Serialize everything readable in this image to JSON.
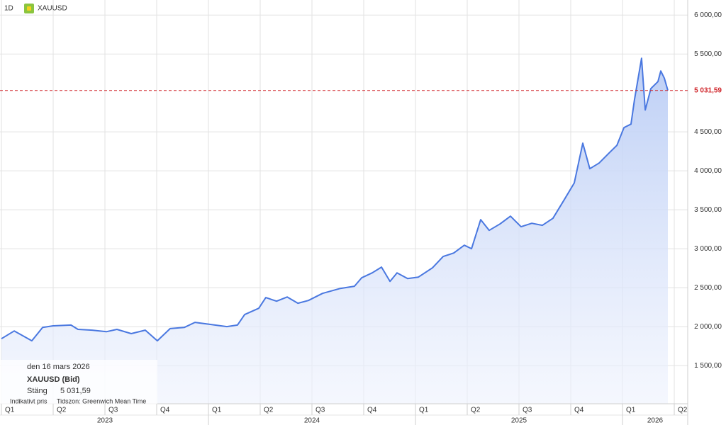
{
  "chart_data": {
    "type": "area",
    "interval": "1D",
    "symbol": "XAUUSD",
    "color": "#4a78e0",
    "x": [
      2023.0,
      2023.062,
      2023.147,
      2023.199,
      2023.25,
      2023.336,
      2023.37,
      2023.438,
      2023.507,
      2023.558,
      2023.627,
      2023.695,
      2023.753,
      2023.815,
      2023.884,
      2023.935,
      2024.003,
      2024.089,
      2024.14,
      2024.175,
      2024.243,
      2024.277,
      2024.329,
      2024.38,
      2024.432,
      2024.483,
      2024.551,
      2024.637,
      2024.705,
      2024.74,
      2024.791,
      2024.836,
      2024.877,
      2024.911,
      2024.962,
      2025.014,
      2025.082,
      2025.134,
      2025.185,
      2025.236,
      2025.271,
      2025.315,
      2025.356,
      2025.408,
      2025.459,
      2025.51,
      2025.562,
      2025.613,
      2025.664,
      2025.716,
      2025.767,
      2025.808,
      2025.842,
      2025.887,
      2025.938,
      2025.973,
      2026.007,
      2026.041,
      2026.058,
      2026.092,
      2026.11,
      2026.137,
      2026.171,
      2026.185,
      2026.202,
      2026.219
    ],
    "values": [
      1845,
      1945,
      1818,
      1990,
      2010,
      2020,
      1965,
      1955,
      1935,
      1965,
      1910,
      1955,
      1818,
      1975,
      1990,
      2055,
      2030,
      2000,
      2020,
      2155,
      2236,
      2373,
      2327,
      2380,
      2300,
      2336,
      2427,
      2490,
      2518,
      2627,
      2690,
      2764,
      2580,
      2690,
      2618,
      2636,
      2755,
      2900,
      2945,
      3045,
      3000,
      3373,
      3236,
      3318,
      3418,
      3282,
      3327,
      3300,
      3390,
      3618,
      3845,
      4355,
      4027,
      4100,
      4236,
      4327,
      4555,
      4600,
      4918,
      5445,
      4782,
      5055,
      5145,
      5282,
      5190,
      5031.59
    ],
    "xlim": [
      2023.0,
      2026.315
    ],
    "ylim": [
      1010,
      6120
    ],
    "yticks": [
      {
        "value": 1500,
        "label": "1 500,00"
      },
      {
        "value": 2000,
        "label": "2 000,00"
      },
      {
        "value": 2500,
        "label": "2 500,00"
      },
      {
        "value": 3000,
        "label": "3 000,00"
      },
      {
        "value": 3500,
        "label": "3 500,00"
      },
      {
        "value": 4000,
        "label": "4 000,00"
      },
      {
        "value": 4500,
        "label": "4 500,00"
      },
      {
        "value": 5500,
        "label": "5 500,00"
      },
      {
        "value": 6000,
        "label": "6 000,00"
      }
    ],
    "xticks": [
      {
        "value": 2023.0,
        "label": "Q1"
      },
      {
        "value": 2023.25,
        "label": "Q2"
      },
      {
        "value": 2023.5,
        "label": "Q3"
      },
      {
        "value": 2023.75,
        "label": "Q4"
      },
      {
        "value": 2024.0,
        "label": "Q1"
      },
      {
        "value": 2024.25,
        "label": "Q2"
      },
      {
        "value": 2024.5,
        "label": "Q3"
      },
      {
        "value": 2024.75,
        "label": "Q4"
      },
      {
        "value": 2025.0,
        "label": "Q1"
      },
      {
        "value": 2025.25,
        "label": "Q2"
      },
      {
        "value": 2025.5,
        "label": "Q3"
      },
      {
        "value": 2025.75,
        "label": "Q4"
      },
      {
        "value": 2026.0,
        "label": "Q1"
      },
      {
        "value": 2026.25,
        "label": "Q2"
      }
    ],
    "years": [
      2023,
      2024,
      2025,
      2026
    ],
    "grid": true,
    "last_price": {
      "value": 5031.59,
      "label": "5 031,59"
    },
    "tooltip": {
      "date": "den 16 mars 2026",
      "series": "XAUUSD (Bid)",
      "close_label": "Stäng",
      "note": "Indikativt pris",
      "timezone": "Tidszon: Greenwich Mean Time"
    }
  }
}
